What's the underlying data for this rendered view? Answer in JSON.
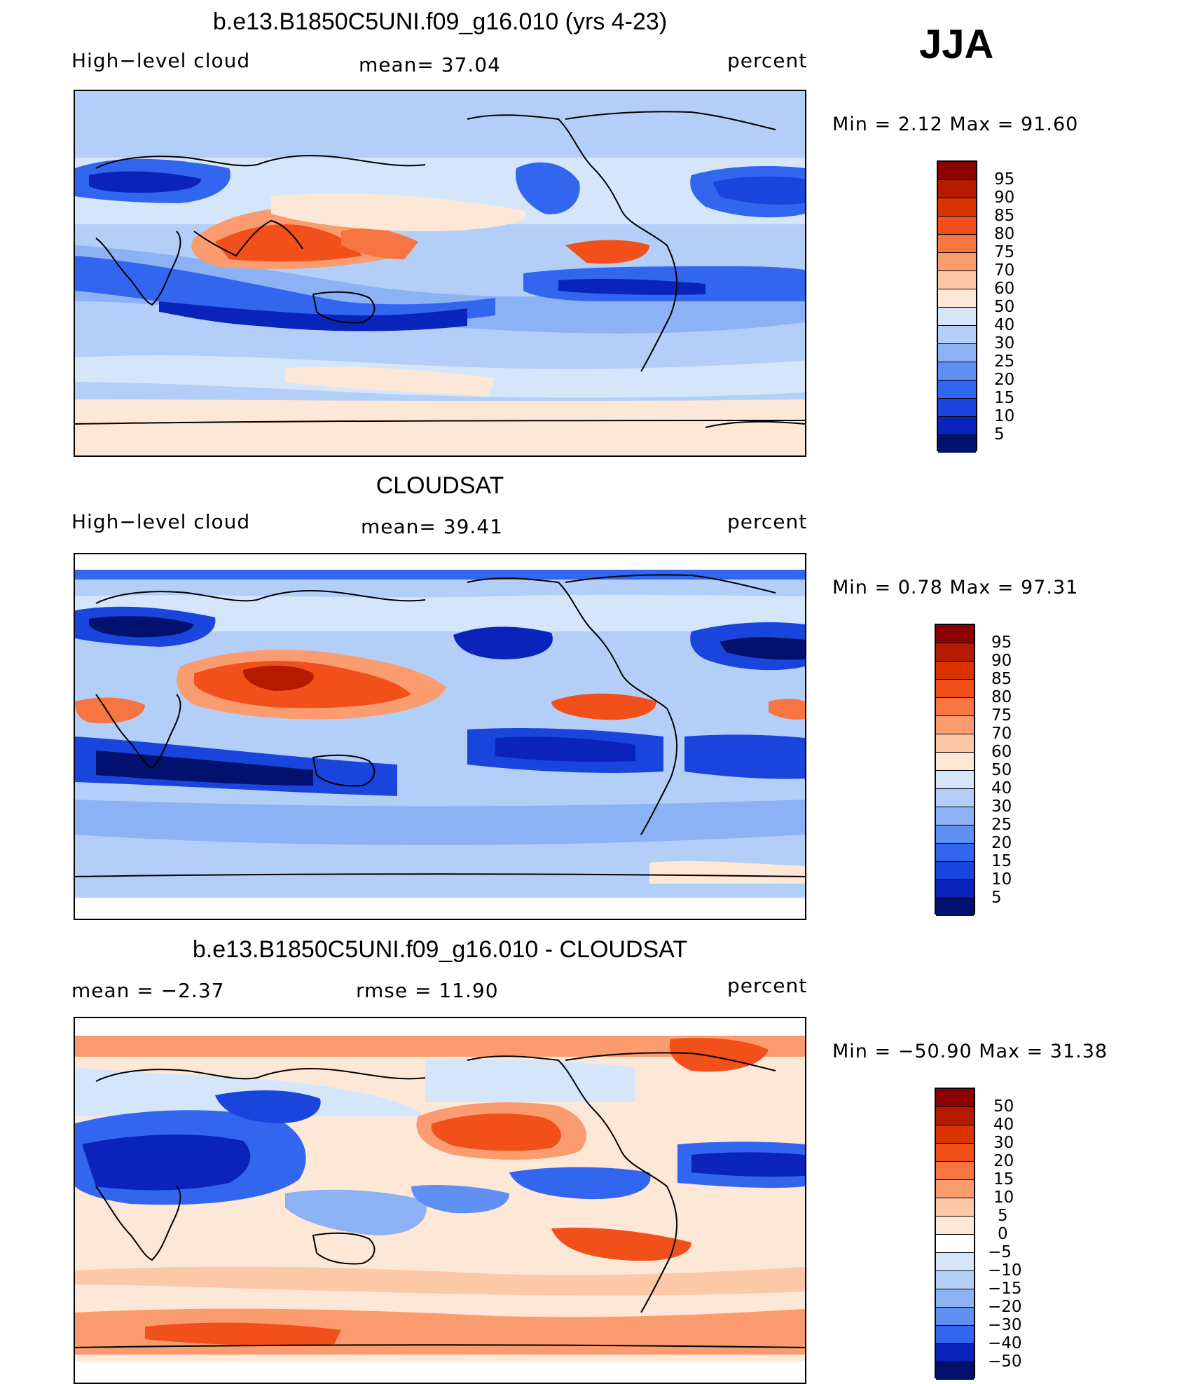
{
  "season": "JJA",
  "panels": [
    {
      "title": "b.e13.B1850C5UNI.f09_g16.010 (yrs 4-23)",
      "left_label": "High−level cloud",
      "center_label": "mean=   37.04",
      "right_label": "percent",
      "minmax": "Min  =     2.12  Max  =    91.60",
      "colorbar_labels": [
        "95",
        "90",
        "85",
        "80",
        "75",
        "70",
        "60",
        "50",
        "40",
        "30",
        "25",
        "20",
        "15",
        "10",
        "5"
      ]
    },
    {
      "title": "CLOUDSAT",
      "left_label": "High−level cloud",
      "center_label": "mean=   39.41",
      "right_label": "percent",
      "minmax": "Min  =     0.78  Max  =    97.31",
      "colorbar_labels": [
        "95",
        "90",
        "85",
        "80",
        "75",
        "70",
        "60",
        "50",
        "40",
        "30",
        "25",
        "20",
        "15",
        "10",
        "5"
      ]
    },
    {
      "title": "b.e13.B1850C5UNI.f09_g16.010 - CLOUDSAT",
      "left_label": "mean  =    −2.37",
      "center_label": "rmse  =    11.90",
      "right_label": "percent",
      "minmax": "Min  = −50.90  Max  =    31.38",
      "colorbar_labels": [
        "50",
        "40",
        "30",
        "20",
        "15",
        "10",
        "5",
        "0",
        "−5",
        "−10",
        "−15",
        "−20",
        "−30",
        "−40",
        "−50"
      ]
    }
  ],
  "colors": {
    "scale": [
      "#8b0000",
      "#b31a00",
      "#d93300",
      "#f2501a",
      "#f77540",
      "#fa9c70",
      "#fcc8a8",
      "#fde8d8",
      "#d6e6fa",
      "#b4cff7",
      "#8cb2f5",
      "#5f8ff2",
      "#3366ee",
      "#1a45dd",
      "#0a24bb",
      "#02106e"
    ]
  }
}
